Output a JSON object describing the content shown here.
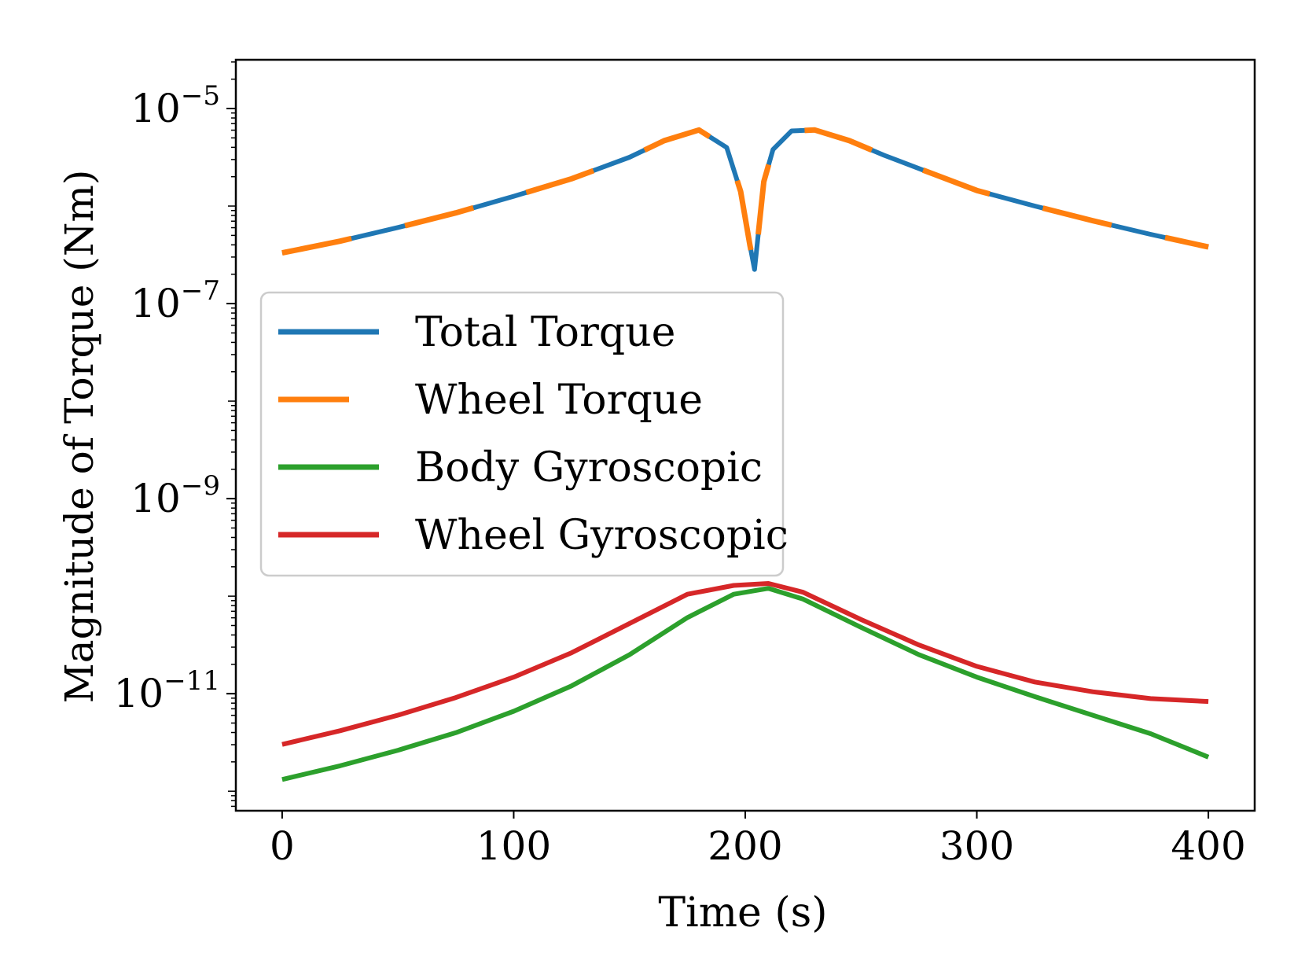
{
  "chart_data": {
    "type": "line",
    "title": "",
    "xlabel": "Time (s)",
    "ylabel": "Magnitude of Torque (Nm)",
    "yscale": "log",
    "xlim": [
      -20,
      420
    ],
    "ylim_log10": [
      -12.2,
      -4.5
    ],
    "x_ticks": [
      0,
      100,
      200,
      300,
      400
    ],
    "x_tick_labels": [
      "0",
      "100",
      "200",
      "300",
      "400"
    ],
    "y_ticks_log10": [
      -5,
      -7,
      -9,
      -11
    ],
    "y_tick_base": "10",
    "y_tick_exponents": [
      "−5",
      "−7",
      "−9",
      "−11"
    ],
    "legend_position": "center-left",
    "series": [
      {
        "name": "Total Torque",
        "color": "#1f77b4",
        "style": "solid",
        "x": [
          0,
          25,
          50,
          75,
          100,
          125,
          150,
          165,
          180,
          192,
          198,
          202,
          204,
          206,
          208,
          212,
          220,
          230,
          245,
          260,
          280,
          300,
          325,
          350,
          375,
          400
        ],
        "log10_y": [
          -6.48,
          -6.36,
          -6.22,
          -6.07,
          -5.9,
          -5.72,
          -5.5,
          -5.33,
          -5.22,
          -5.4,
          -5.85,
          -6.4,
          -6.65,
          -6.2,
          -5.75,
          -5.42,
          -5.23,
          -5.22,
          -5.33,
          -5.48,
          -5.66,
          -5.84,
          -6.0,
          -6.15,
          -6.29,
          -6.42
        ]
      },
      {
        "name": "Wheel Torque",
        "color": "#ff7f0e",
        "style": "dashed",
        "x": [
          0,
          25,
          50,
          75,
          100,
          125,
          150,
          165,
          180,
          192,
          198,
          202,
          204,
          206,
          208,
          212,
          220,
          230,
          245,
          260,
          280,
          300,
          325,
          350,
          375,
          400
        ],
        "log10_y": [
          -6.48,
          -6.36,
          -6.22,
          -6.07,
          -5.9,
          -5.72,
          -5.5,
          -5.33,
          -5.22,
          -5.4,
          -5.85,
          -6.4,
          -6.65,
          -6.2,
          -5.75,
          -5.42,
          -5.23,
          -5.22,
          -5.33,
          -5.48,
          -5.66,
          -5.84,
          -6.0,
          -6.15,
          -6.29,
          -6.42
        ]
      },
      {
        "name": "Body Gyroscopic",
        "color": "#2ca02c",
        "style": "solid",
        "x": [
          0,
          25,
          50,
          75,
          100,
          125,
          150,
          175,
          195,
          210,
          225,
          250,
          275,
          300,
          325,
          350,
          375,
          400
        ],
        "log10_y": [
          -11.88,
          -11.74,
          -11.58,
          -11.4,
          -11.18,
          -10.92,
          -10.6,
          -10.22,
          -9.98,
          -9.92,
          -10.03,
          -10.32,
          -10.6,
          -10.83,
          -11.03,
          -11.22,
          -11.41,
          -11.65
        ]
      },
      {
        "name": "Wheel Gyroscopic",
        "color": "#d62728",
        "style": "solid",
        "x": [
          0,
          25,
          50,
          75,
          100,
          125,
          150,
          175,
          195,
          210,
          225,
          250,
          275,
          300,
          325,
          350,
          375,
          400
        ],
        "log10_y": [
          -11.52,
          -11.38,
          -11.22,
          -11.04,
          -10.83,
          -10.58,
          -10.28,
          -9.98,
          -9.89,
          -9.87,
          -9.96,
          -10.24,
          -10.5,
          -10.72,
          -10.88,
          -10.98,
          -11.05,
          -11.08
        ]
      }
    ]
  }
}
